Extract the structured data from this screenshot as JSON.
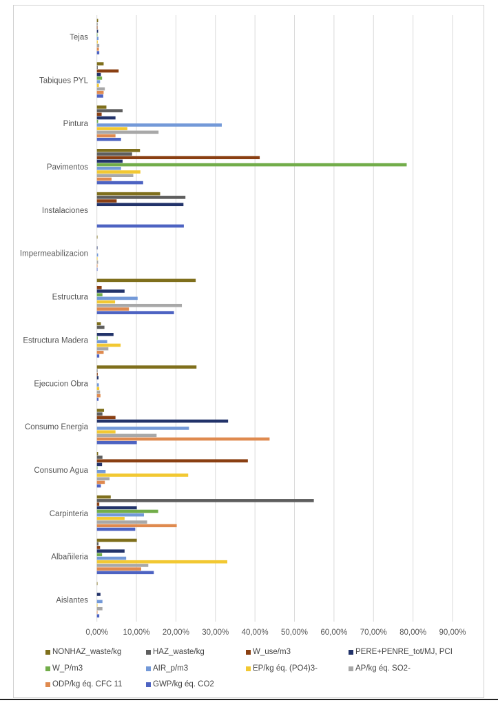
{
  "chart_data": {
    "type": "bar",
    "orientation": "horizontal",
    "categories": [
      "Tejas",
      "Tabiques PYL",
      "Pintura",
      "Pavimentos",
      "Instalaciones",
      "Impermeabilizacion",
      "Estructura",
      "Estructura Madera",
      "Ejecucion Obra",
      "Consumo Energia",
      "Consumo Agua",
      "Carpinteria",
      "Albañileria",
      "Aislantes"
    ],
    "xlim": [
      0,
      90
    ],
    "x_ticks": [
      "0,00%",
      "10,00%",
      "20,00%",
      "30,00%",
      "40,00%",
      "50,00%",
      "60,00%",
      "70,00%",
      "80,00%",
      "90,00%"
    ],
    "grid": true,
    "legend_placement": "bottom",
    "series": [
      {
        "name": "NONHAZ_waste/kg",
        "color": "#7f6f1c",
        "values": [
          0.3,
          1.7,
          2.4,
          10.9,
          16.0,
          0.1,
          25.0,
          1.0,
          25.2,
          1.8,
          0.3,
          3.5,
          10.1,
          0.1
        ]
      },
      {
        "name": "HAZ_waste/kg",
        "color": "#5e5e5e",
        "values": [
          0.1,
          0.2,
          6.5,
          8.9,
          22.4,
          0.0,
          0.0,
          1.9,
          0.1,
          1.4,
          1.4,
          54.9,
          0.4,
          0.0
        ]
      },
      {
        "name": "W_use/m3",
        "color": "#8a3f12",
        "values": [
          0.1,
          5.5,
          1.2,
          41.2,
          5.0,
          0.0,
          1.2,
          0.0,
          0.2,
          4.7,
          38.2,
          0.6,
          0.8,
          0.0
        ]
      },
      {
        "name": "PERE+PENRE_tot/MJ, PCI",
        "color": "#22336a",
        "values": [
          0.3,
          1.0,
          4.7,
          6.5,
          21.9,
          0.1,
          7.0,
          4.2,
          0.4,
          33.2,
          1.3,
          10.1,
          7.0,
          0.9
        ]
      },
      {
        "name": "W_P/m3",
        "color": "#72ad4a",
        "values": [
          0.1,
          1.3,
          0.3,
          78.4,
          0.0,
          0.0,
          1.4,
          0.2,
          0.0,
          0.0,
          0.1,
          15.5,
          1.3,
          0.0
        ]
      },
      {
        "name": "AIR_p/m3",
        "color": "#7399d8",
        "values": [
          0.4,
          0.8,
          31.6,
          6.1,
          0.0,
          0.3,
          10.3,
          2.6,
          0.5,
          23.3,
          2.2,
          11.9,
          7.4,
          1.4
        ]
      },
      {
        "name": "EP/kg éq. (PO4)3-",
        "color": "#f2c832",
        "values": [
          0.2,
          0.5,
          7.7,
          11.0,
          0.0,
          0.1,
          4.6,
          6.0,
          0.6,
          4.7,
          23.1,
          7.0,
          33.0,
          0.1
        ]
      },
      {
        "name": "AP/kg éq. SO2-",
        "color": "#a8a8a8",
        "values": [
          0.6,
          2.0,
          15.6,
          9.2,
          0.0,
          0.3,
          21.5,
          2.9,
          0.8,
          15.1,
          3.2,
          12.7,
          13.0,
          1.4
        ]
      },
      {
        "name": "ODP/kg éq. CFC 11",
        "color": "#df8a4f",
        "values": [
          0.5,
          1.7,
          4.7,
          3.7,
          0.0,
          0.1,
          8.1,
          1.7,
          0.9,
          43.7,
          2.0,
          20.2,
          11.2,
          0.1
        ]
      },
      {
        "name": "GWP/kg éq. CO2",
        "color": "#4d63c2",
        "values": [
          0.6,
          1.6,
          6.1,
          11.7,
          22.0,
          0.1,
          19.5,
          0.6,
          0.4,
          10.1,
          1.0,
          9.7,
          14.4,
          0.6
        ]
      }
    ]
  }
}
